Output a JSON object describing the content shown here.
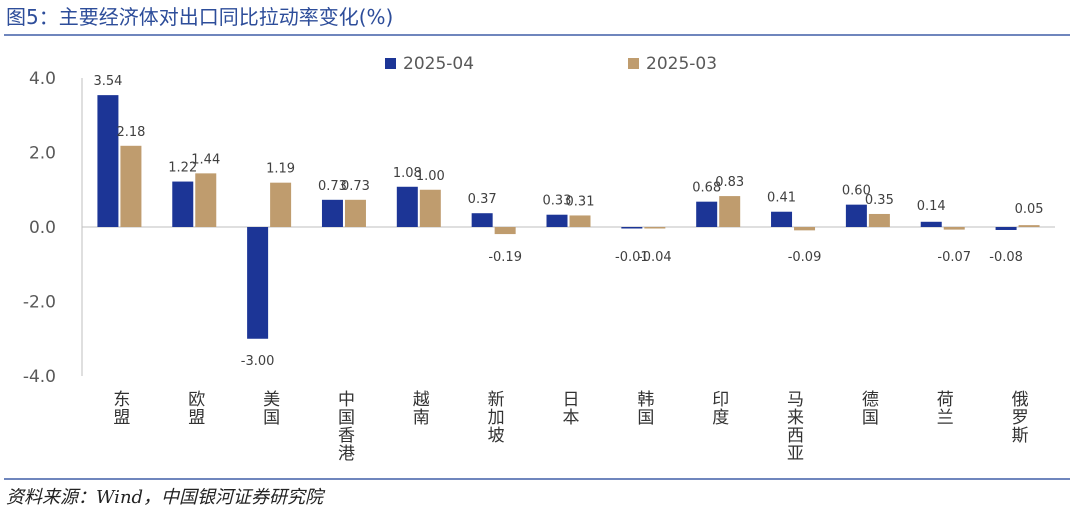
{
  "header": {
    "title": "图5：主要经济体对出口同比拉动率变化(%)"
  },
  "footer": {
    "source": "资料来源：Wind，中国银河证券研究院"
  },
  "colors": {
    "series_2025_04": "#1c3596",
    "series_2025_03": "#bf9c6e",
    "title": "#2d4d9a",
    "rule": "#6f86bd",
    "axis": "#bfbfbf",
    "tick_text": "#595959",
    "label_text": "#404040"
  },
  "chart_data": {
    "type": "bar",
    "title": "",
    "xlabel": "",
    "ylabel": "",
    "ylim": [
      -4.0,
      4.0
    ],
    "yticks": [
      "4.0",
      "2.0",
      "0.0",
      "-2.0",
      "-4.0"
    ],
    "legend_position": "top",
    "grid": false,
    "categories": [
      "东盟",
      "欧盟",
      "美国",
      "中国香港",
      "越南",
      "新加坡",
      "日本",
      "韩国",
      "印度",
      "马来西亚",
      "德国",
      "荷兰",
      "俄罗斯"
    ],
    "series": [
      {
        "name": "2025-04",
        "values": [
          3.54,
          1.22,
          -3.0,
          0.73,
          1.08,
          0.37,
          0.33,
          -0.01,
          0.68,
          0.41,
          0.6,
          0.14,
          -0.08
        ],
        "labels": [
          "3.54",
          "1.22",
          "-3.00",
          "0.73",
          "1.08",
          "0.37",
          "0.33",
          "-0.01",
          "0.68",
          "0.41",
          "0.60",
          "0.14",
          "-0.08"
        ]
      },
      {
        "name": "2025-03",
        "values": [
          2.18,
          1.44,
          1.19,
          0.73,
          1.0,
          -0.19,
          0.31,
          -0.04,
          0.83,
          -0.09,
          0.35,
          -0.07,
          0.05
        ],
        "labels": [
          "2.18",
          "1.44",
          "1.19",
          "0.73",
          "1.00",
          "-0.19",
          "0.31",
          "-0.04",
          "0.83",
          "-0.09",
          "0.35",
          "-0.07",
          "0.05"
        ]
      }
    ]
  }
}
